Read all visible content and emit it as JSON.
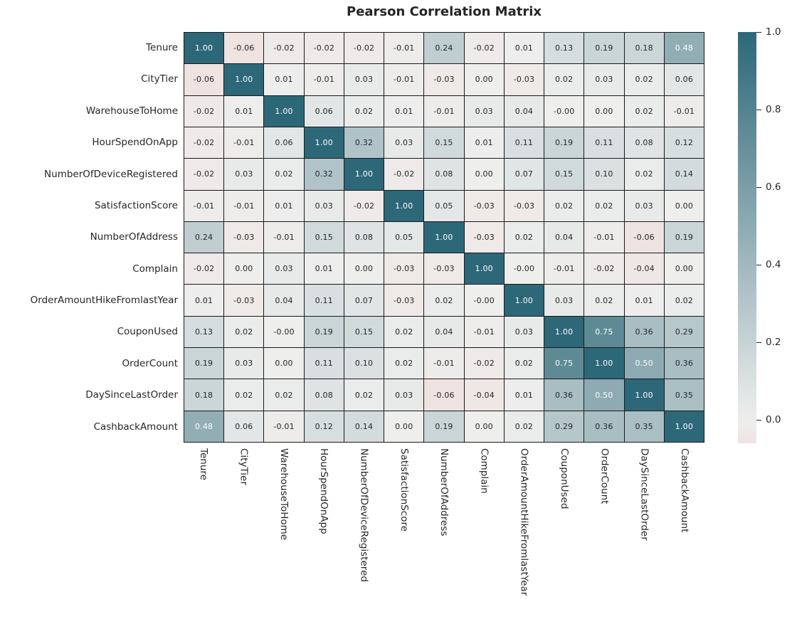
{
  "title": "Pearson Correlation Matrix",
  "chart_data": {
    "type": "heatmap",
    "title": "Pearson Correlation Matrix",
    "categories": [
      "Tenure",
      "CityTier",
      "WarehouseToHome",
      "HourSpendOnApp",
      "NumberOfDeviceRegistered",
      "SatisfactionScore",
      "NumberOfAddress",
      "Complain",
      "OrderAmountHikeFromlastYear",
      "CouponUsed",
      "OrderCount",
      "DaySinceLastOrder",
      "CashbackAmount"
    ],
    "matrix": [
      [
        "1.00",
        "-0.06",
        "-0.02",
        "-0.02",
        "-0.02",
        "-0.01",
        "0.24",
        "-0.02",
        "0.01",
        "0.13",
        "0.19",
        "0.18",
        "0.48"
      ],
      [
        "-0.06",
        "1.00",
        "0.01",
        "-0.01",
        "0.03",
        "-0.01",
        "-0.03",
        "0.00",
        "-0.03",
        "0.02",
        "0.03",
        "0.02",
        "0.06"
      ],
      [
        "-0.02",
        "0.01",
        "1.00",
        "0.06",
        "0.02",
        "0.01",
        "-0.01",
        "0.03",
        "0.04",
        "-0.00",
        "0.00",
        "0.02",
        "-0.01"
      ],
      [
        "-0.02",
        "-0.01",
        "0.06",
        "1.00",
        "0.32",
        "0.03",
        "0.15",
        "0.01",
        "0.11",
        "0.19",
        "0.11",
        "0.08",
        "0.12"
      ],
      [
        "-0.02",
        "0.03",
        "0.02",
        "0.32",
        "1.00",
        "-0.02",
        "0.08",
        "0.00",
        "0.07",
        "0.15",
        "0.10",
        "0.02",
        "0.14"
      ],
      [
        "-0.01",
        "-0.01",
        "0.01",
        "0.03",
        "-0.02",
        "1.00",
        "0.05",
        "-0.03",
        "-0.03",
        "0.02",
        "0.02",
        "0.03",
        "0.00"
      ],
      [
        "0.24",
        "-0.03",
        "-0.01",
        "0.15",
        "0.08",
        "0.05",
        "1.00",
        "-0.03",
        "0.02",
        "0.04",
        "-0.01",
        "-0.06",
        "0.19"
      ],
      [
        "-0.02",
        "0.00",
        "0.03",
        "0.01",
        "0.00",
        "-0.03",
        "-0.03",
        "1.00",
        "-0.00",
        "-0.01",
        "-0.02",
        "-0.04",
        "0.00"
      ],
      [
        "0.01",
        "-0.03",
        "0.04",
        "0.11",
        "0.07",
        "-0.03",
        "0.02",
        "-0.00",
        "1.00",
        "0.03",
        "0.02",
        "0.01",
        "0.02"
      ],
      [
        "0.13",
        "0.02",
        "-0.00",
        "0.19",
        "0.15",
        "0.02",
        "0.04",
        "-0.01",
        "0.03",
        "1.00",
        "0.75",
        "0.36",
        "0.29"
      ],
      [
        "0.19",
        "0.03",
        "0.00",
        "0.11",
        "0.10",
        "0.02",
        "-0.01",
        "-0.02",
        "0.02",
        "0.75",
        "1.00",
        "0.50",
        "0.36"
      ],
      [
        "0.18",
        "0.02",
        "0.02",
        "0.08",
        "0.02",
        "0.03",
        "-0.06",
        "-0.04",
        "0.01",
        "0.36",
        "0.50",
        "1.00",
        "0.35"
      ],
      [
        "0.48",
        "0.06",
        "-0.01",
        "0.12",
        "0.14",
        "0.00",
        "0.19",
        "0.00",
        "0.02",
        "0.29",
        "0.36",
        "0.35",
        "1.00"
      ]
    ],
    "vmin": -0.06,
    "vmax": 1.0,
    "center": 0,
    "colorbar_ticks": [
      {
        "label": "1.0",
        "value": 1.0
      },
      {
        "label": "0.8",
        "value": 0.8
      },
      {
        "label": "0.6",
        "value": 0.6
      },
      {
        "label": "0.4",
        "value": 0.4
      },
      {
        "label": "0.2",
        "value": 0.2
      },
      {
        "label": "0.0",
        "value": 0.0
      }
    ],
    "legend_position": "right",
    "grid": "on",
    "colors": {
      "positive_end": "#2d6878",
      "neutral": "#eeeeed",
      "negative_end": "#ff3736",
      "grid_line": "#1a1a1a",
      "text_dark": "#262626",
      "text_light": "#ffffff",
      "background": "#ffffff"
    }
  }
}
